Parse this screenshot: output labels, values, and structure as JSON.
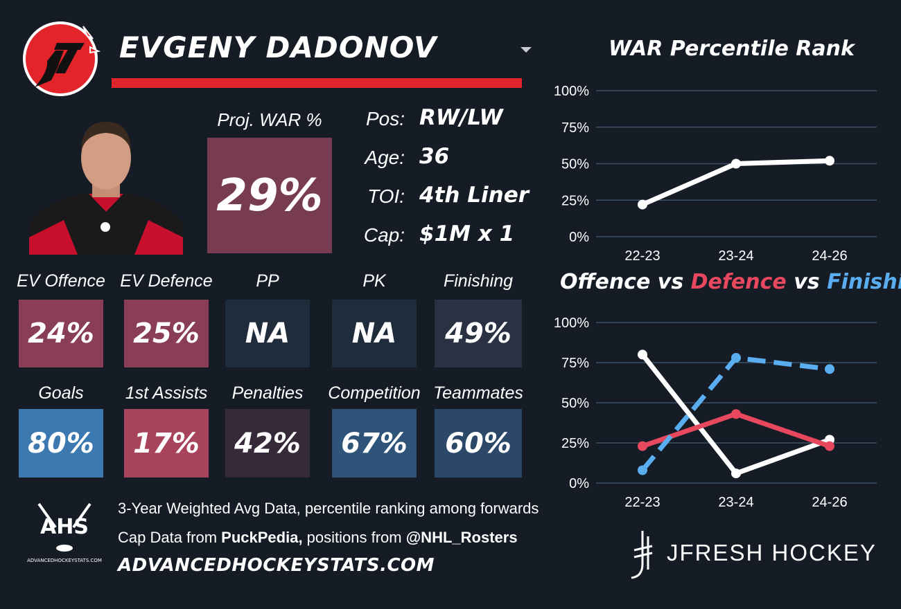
{
  "header": {
    "player_name": "EVGENY DADONOV"
  },
  "projected": {
    "label": "Proj. WAR %",
    "value": "29%",
    "color": "#773c51"
  },
  "info": [
    {
      "label": "Pos:",
      "value": "RW/LW"
    },
    {
      "label": "Age:",
      "value": "36"
    },
    {
      "label": "TOI:",
      "value": "4th Liner"
    },
    {
      "label": "Cap:",
      "value": "$1M x 1"
    }
  ],
  "stats_row1": [
    {
      "label": "EV Offence",
      "value": "24%",
      "color": "#8a3e56"
    },
    {
      "label": "EV Defence",
      "value": "25%",
      "color": "#8a3e56"
    },
    {
      "label": "PP",
      "value": "NA",
      "color": "#1f2c3b"
    },
    {
      "label": "PK",
      "value": "NA",
      "color": "#1f2c3b"
    },
    {
      "label": "Finishing",
      "value": "49%",
      "color": "#2a3142"
    }
  ],
  "stats_row2": [
    {
      "label": "Goals",
      "value": "80%",
      "color": "#3d79b1"
    },
    {
      "label": "1st Assists",
      "value": "17%",
      "color": "#a8435c"
    },
    {
      "label": "Penalties",
      "value": "42%",
      "color": "#36293a"
    },
    {
      "label": "Competition",
      "value": "67%",
      "color": "#2e547a"
    },
    {
      "label": "Teammates",
      "value": "60%",
      "color": "#2b4868"
    }
  ],
  "footer": {
    "line1": "3-Year Weighted Avg Data, percentile ranking among forwards",
    "line2_prefix": "Cap Data from ",
    "line2_source1": "PuckPedia,",
    "line2_middle": " positions from ",
    "line2_source2": "@NHL_Rosters",
    "site": "ADVANCEDHOCKEYSTATS.COM",
    "ahs_logo_text": "AHS",
    "ahs_logo_small": "ADVANCEDHOCKEYSTATS.COM",
    "brand": "JFRESH HOCKEY"
  },
  "icons": {
    "team": "devils-logo-icon",
    "headshot": "player-headshot",
    "dropdown": "chevron-down-icon"
  },
  "chart_data": [
    {
      "type": "line",
      "title": "WAR Percentile Rank",
      "categories": [
        "22-23",
        "23-24",
        "24-26"
      ],
      "series": [
        {
          "values": [
            22,
            50,
            52
          ],
          "color": "#ffffff",
          "dash": "solid"
        }
      ],
      "ylim": [
        0,
        100
      ],
      "yticks": [
        "0%",
        "25%",
        "50%",
        "75%",
        "100%"
      ],
      "grid": true
    },
    {
      "type": "line",
      "title_parts": [
        {
          "text": "Offence",
          "color": "#ffffff"
        },
        {
          "text": " vs ",
          "color": "#ffffff"
        },
        {
          "text": "Defence",
          "color": "#e8485e"
        },
        {
          "text": " vs ",
          "color": "#ffffff"
        },
        {
          "text": "Finishing",
          "color": "#5aaeef"
        }
      ],
      "categories": [
        "22-23",
        "23-24",
        "24-26"
      ],
      "series": [
        {
          "name": "Offence",
          "values": [
            80,
            6,
            27
          ],
          "color": "#ffffff",
          "dash": "solid"
        },
        {
          "name": "Defence",
          "values": [
            23,
            43,
            23
          ],
          "color": "#e8485e",
          "dash": "solid"
        },
        {
          "name": "Finishing",
          "values": [
            8,
            78,
            71
          ],
          "color": "#5aaeef",
          "dash": "dashed"
        }
      ],
      "ylim": [
        0,
        100
      ],
      "yticks": [
        "0%",
        "25%",
        "50%",
        "75%",
        "100%"
      ],
      "grid": true
    }
  ]
}
